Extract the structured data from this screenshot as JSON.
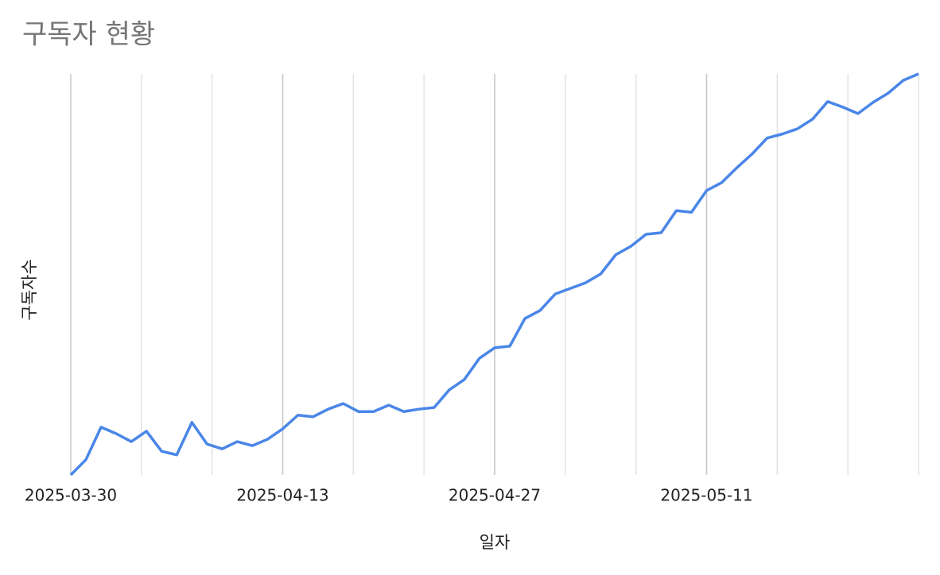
{
  "chart_data": {
    "type": "line",
    "title": "구독자 현황",
    "x_label": "일자",
    "y_label": "구독자수",
    "x": [
      "2025-03-30",
      "2025-03-31",
      "2025-04-01",
      "2025-04-02",
      "2025-04-03",
      "2025-04-04",
      "2025-04-05",
      "2025-04-06",
      "2025-04-07",
      "2025-04-08",
      "2025-04-09",
      "2025-04-10",
      "2025-04-11",
      "2025-04-12",
      "2025-04-13",
      "2025-04-14",
      "2025-04-15",
      "2025-04-16",
      "2025-04-17",
      "2025-04-18",
      "2025-04-19",
      "2025-04-20",
      "2025-04-21",
      "2025-04-22",
      "2025-04-23",
      "2025-04-24",
      "2025-04-25",
      "2025-04-26",
      "2025-04-27",
      "2025-04-28",
      "2025-04-29",
      "2025-04-30",
      "2025-05-01",
      "2025-05-02",
      "2025-05-03",
      "2025-05-04",
      "2025-05-05",
      "2025-05-06",
      "2025-05-07",
      "2025-05-08",
      "2025-05-09",
      "2025-05-10",
      "2025-05-11",
      "2025-05-12",
      "2025-05-13",
      "2025-05-14",
      "2025-05-15",
      "2025-05-16",
      "2025-05-17",
      "2025-05-18",
      "2025-05-19",
      "2025-05-20",
      "2025-05-21",
      "2025-05-22",
      "2025-05-23",
      "2025-05-24",
      "2025-05-25"
    ],
    "series": [
      {
        "name": "구독자수",
        "color": "#4a86e8",
        "values": [
          0,
          3.8,
          11.9,
          10.3,
          8.3,
          10.9,
          5.9,
          5.0,
          13.1,
          7.7,
          6.5,
          8.3,
          7.3,
          8.9,
          11.5,
          14.9,
          14.5,
          16.4,
          17.8,
          15.8,
          15.8,
          17.4,
          15.8,
          16.4,
          16.8,
          21.2,
          23.8,
          29.1,
          31.7,
          32.1,
          39.0,
          41.0,
          45.1,
          46.5,
          47.9,
          50.1,
          54.9,
          57.0,
          60.0,
          60.4,
          65.9,
          65.5,
          70.9,
          72.9,
          76.6,
          80.0,
          84.0,
          85.0,
          86.3,
          88.7,
          93.1,
          91.7,
          90.1,
          92.9,
          95.2,
          98.4,
          100
        ]
      }
    ],
    "xlim": [
      "2025-03-30",
      "2025-05-25"
    ],
    "xticks": [
      "2025-03-30",
      "2025-04-13",
      "2025-04-27",
      "2025-05-11"
    ],
    "ylim": [
      0,
      100
    ],
    "grid": true
  }
}
